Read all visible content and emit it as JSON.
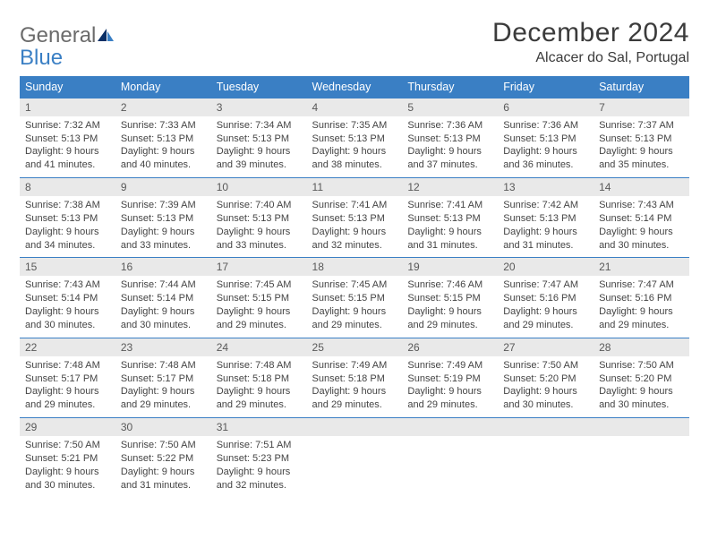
{
  "brand": {
    "word1": "General",
    "word2": "Blue"
  },
  "title": "December 2024",
  "location": "Alcacer do Sal, Portugal",
  "colors": {
    "header_bg": "#3a7fc4",
    "header_text": "#ffffff",
    "daynum_bg": "#e9e9e9",
    "daynum_text": "#595959",
    "body_text": "#444444",
    "row_border": "#3a7fc4",
    "page_bg": "#ffffff",
    "logo_gray": "#6b6b6b",
    "logo_blue": "#3a7fc4"
  },
  "typography": {
    "title_fontsize": 30,
    "location_fontsize": 16,
    "weekday_fontsize": 12.5,
    "daynum_fontsize": 12,
    "body_fontsize": 11,
    "logo_fontsize": 24
  },
  "layout": {
    "columns": 7,
    "rows": 5,
    "leading_blanks": 0,
    "trailing_blanks": 4
  },
  "weekdays": [
    "Sunday",
    "Monday",
    "Tuesday",
    "Wednesday",
    "Thursday",
    "Friday",
    "Saturday"
  ],
  "days": [
    {
      "n": "1",
      "sunrise": "Sunrise: 7:32 AM",
      "sunset": "Sunset: 5:13 PM",
      "dl1": "Daylight: 9 hours",
      "dl2": "and 41 minutes."
    },
    {
      "n": "2",
      "sunrise": "Sunrise: 7:33 AM",
      "sunset": "Sunset: 5:13 PM",
      "dl1": "Daylight: 9 hours",
      "dl2": "and 40 minutes."
    },
    {
      "n": "3",
      "sunrise": "Sunrise: 7:34 AM",
      "sunset": "Sunset: 5:13 PM",
      "dl1": "Daylight: 9 hours",
      "dl2": "and 39 minutes."
    },
    {
      "n": "4",
      "sunrise": "Sunrise: 7:35 AM",
      "sunset": "Sunset: 5:13 PM",
      "dl1": "Daylight: 9 hours",
      "dl2": "and 38 minutes."
    },
    {
      "n": "5",
      "sunrise": "Sunrise: 7:36 AM",
      "sunset": "Sunset: 5:13 PM",
      "dl1": "Daylight: 9 hours",
      "dl2": "and 37 minutes."
    },
    {
      "n": "6",
      "sunrise": "Sunrise: 7:36 AM",
      "sunset": "Sunset: 5:13 PM",
      "dl1": "Daylight: 9 hours",
      "dl2": "and 36 minutes."
    },
    {
      "n": "7",
      "sunrise": "Sunrise: 7:37 AM",
      "sunset": "Sunset: 5:13 PM",
      "dl1": "Daylight: 9 hours",
      "dl2": "and 35 minutes."
    },
    {
      "n": "8",
      "sunrise": "Sunrise: 7:38 AM",
      "sunset": "Sunset: 5:13 PM",
      "dl1": "Daylight: 9 hours",
      "dl2": "and 34 minutes."
    },
    {
      "n": "9",
      "sunrise": "Sunrise: 7:39 AM",
      "sunset": "Sunset: 5:13 PM",
      "dl1": "Daylight: 9 hours",
      "dl2": "and 33 minutes."
    },
    {
      "n": "10",
      "sunrise": "Sunrise: 7:40 AM",
      "sunset": "Sunset: 5:13 PM",
      "dl1": "Daylight: 9 hours",
      "dl2": "and 33 minutes."
    },
    {
      "n": "11",
      "sunrise": "Sunrise: 7:41 AM",
      "sunset": "Sunset: 5:13 PM",
      "dl1": "Daylight: 9 hours",
      "dl2": "and 32 minutes."
    },
    {
      "n": "12",
      "sunrise": "Sunrise: 7:41 AM",
      "sunset": "Sunset: 5:13 PM",
      "dl1": "Daylight: 9 hours",
      "dl2": "and 31 minutes."
    },
    {
      "n": "13",
      "sunrise": "Sunrise: 7:42 AM",
      "sunset": "Sunset: 5:13 PM",
      "dl1": "Daylight: 9 hours",
      "dl2": "and 31 minutes."
    },
    {
      "n": "14",
      "sunrise": "Sunrise: 7:43 AM",
      "sunset": "Sunset: 5:14 PM",
      "dl1": "Daylight: 9 hours",
      "dl2": "and 30 minutes."
    },
    {
      "n": "15",
      "sunrise": "Sunrise: 7:43 AM",
      "sunset": "Sunset: 5:14 PM",
      "dl1": "Daylight: 9 hours",
      "dl2": "and 30 minutes."
    },
    {
      "n": "16",
      "sunrise": "Sunrise: 7:44 AM",
      "sunset": "Sunset: 5:14 PM",
      "dl1": "Daylight: 9 hours",
      "dl2": "and 30 minutes."
    },
    {
      "n": "17",
      "sunrise": "Sunrise: 7:45 AM",
      "sunset": "Sunset: 5:15 PM",
      "dl1": "Daylight: 9 hours",
      "dl2": "and 29 minutes."
    },
    {
      "n": "18",
      "sunrise": "Sunrise: 7:45 AM",
      "sunset": "Sunset: 5:15 PM",
      "dl1": "Daylight: 9 hours",
      "dl2": "and 29 minutes."
    },
    {
      "n": "19",
      "sunrise": "Sunrise: 7:46 AM",
      "sunset": "Sunset: 5:15 PM",
      "dl1": "Daylight: 9 hours",
      "dl2": "and 29 minutes."
    },
    {
      "n": "20",
      "sunrise": "Sunrise: 7:47 AM",
      "sunset": "Sunset: 5:16 PM",
      "dl1": "Daylight: 9 hours",
      "dl2": "and 29 minutes."
    },
    {
      "n": "21",
      "sunrise": "Sunrise: 7:47 AM",
      "sunset": "Sunset: 5:16 PM",
      "dl1": "Daylight: 9 hours",
      "dl2": "and 29 minutes."
    },
    {
      "n": "22",
      "sunrise": "Sunrise: 7:48 AM",
      "sunset": "Sunset: 5:17 PM",
      "dl1": "Daylight: 9 hours",
      "dl2": "and 29 minutes."
    },
    {
      "n": "23",
      "sunrise": "Sunrise: 7:48 AM",
      "sunset": "Sunset: 5:17 PM",
      "dl1": "Daylight: 9 hours",
      "dl2": "and 29 minutes."
    },
    {
      "n": "24",
      "sunrise": "Sunrise: 7:48 AM",
      "sunset": "Sunset: 5:18 PM",
      "dl1": "Daylight: 9 hours",
      "dl2": "and 29 minutes."
    },
    {
      "n": "25",
      "sunrise": "Sunrise: 7:49 AM",
      "sunset": "Sunset: 5:18 PM",
      "dl1": "Daylight: 9 hours",
      "dl2": "and 29 minutes."
    },
    {
      "n": "26",
      "sunrise": "Sunrise: 7:49 AM",
      "sunset": "Sunset: 5:19 PM",
      "dl1": "Daylight: 9 hours",
      "dl2": "and 29 minutes."
    },
    {
      "n": "27",
      "sunrise": "Sunrise: 7:50 AM",
      "sunset": "Sunset: 5:20 PM",
      "dl1": "Daylight: 9 hours",
      "dl2": "and 30 minutes."
    },
    {
      "n": "28",
      "sunrise": "Sunrise: 7:50 AM",
      "sunset": "Sunset: 5:20 PM",
      "dl1": "Daylight: 9 hours",
      "dl2": "and 30 minutes."
    },
    {
      "n": "29",
      "sunrise": "Sunrise: 7:50 AM",
      "sunset": "Sunset: 5:21 PM",
      "dl1": "Daylight: 9 hours",
      "dl2": "and 30 minutes."
    },
    {
      "n": "30",
      "sunrise": "Sunrise: 7:50 AM",
      "sunset": "Sunset: 5:22 PM",
      "dl1": "Daylight: 9 hours",
      "dl2": "and 31 minutes."
    },
    {
      "n": "31",
      "sunrise": "Sunrise: 7:51 AM",
      "sunset": "Sunset: 5:23 PM",
      "dl1": "Daylight: 9 hours",
      "dl2": "and 32 minutes."
    }
  ]
}
